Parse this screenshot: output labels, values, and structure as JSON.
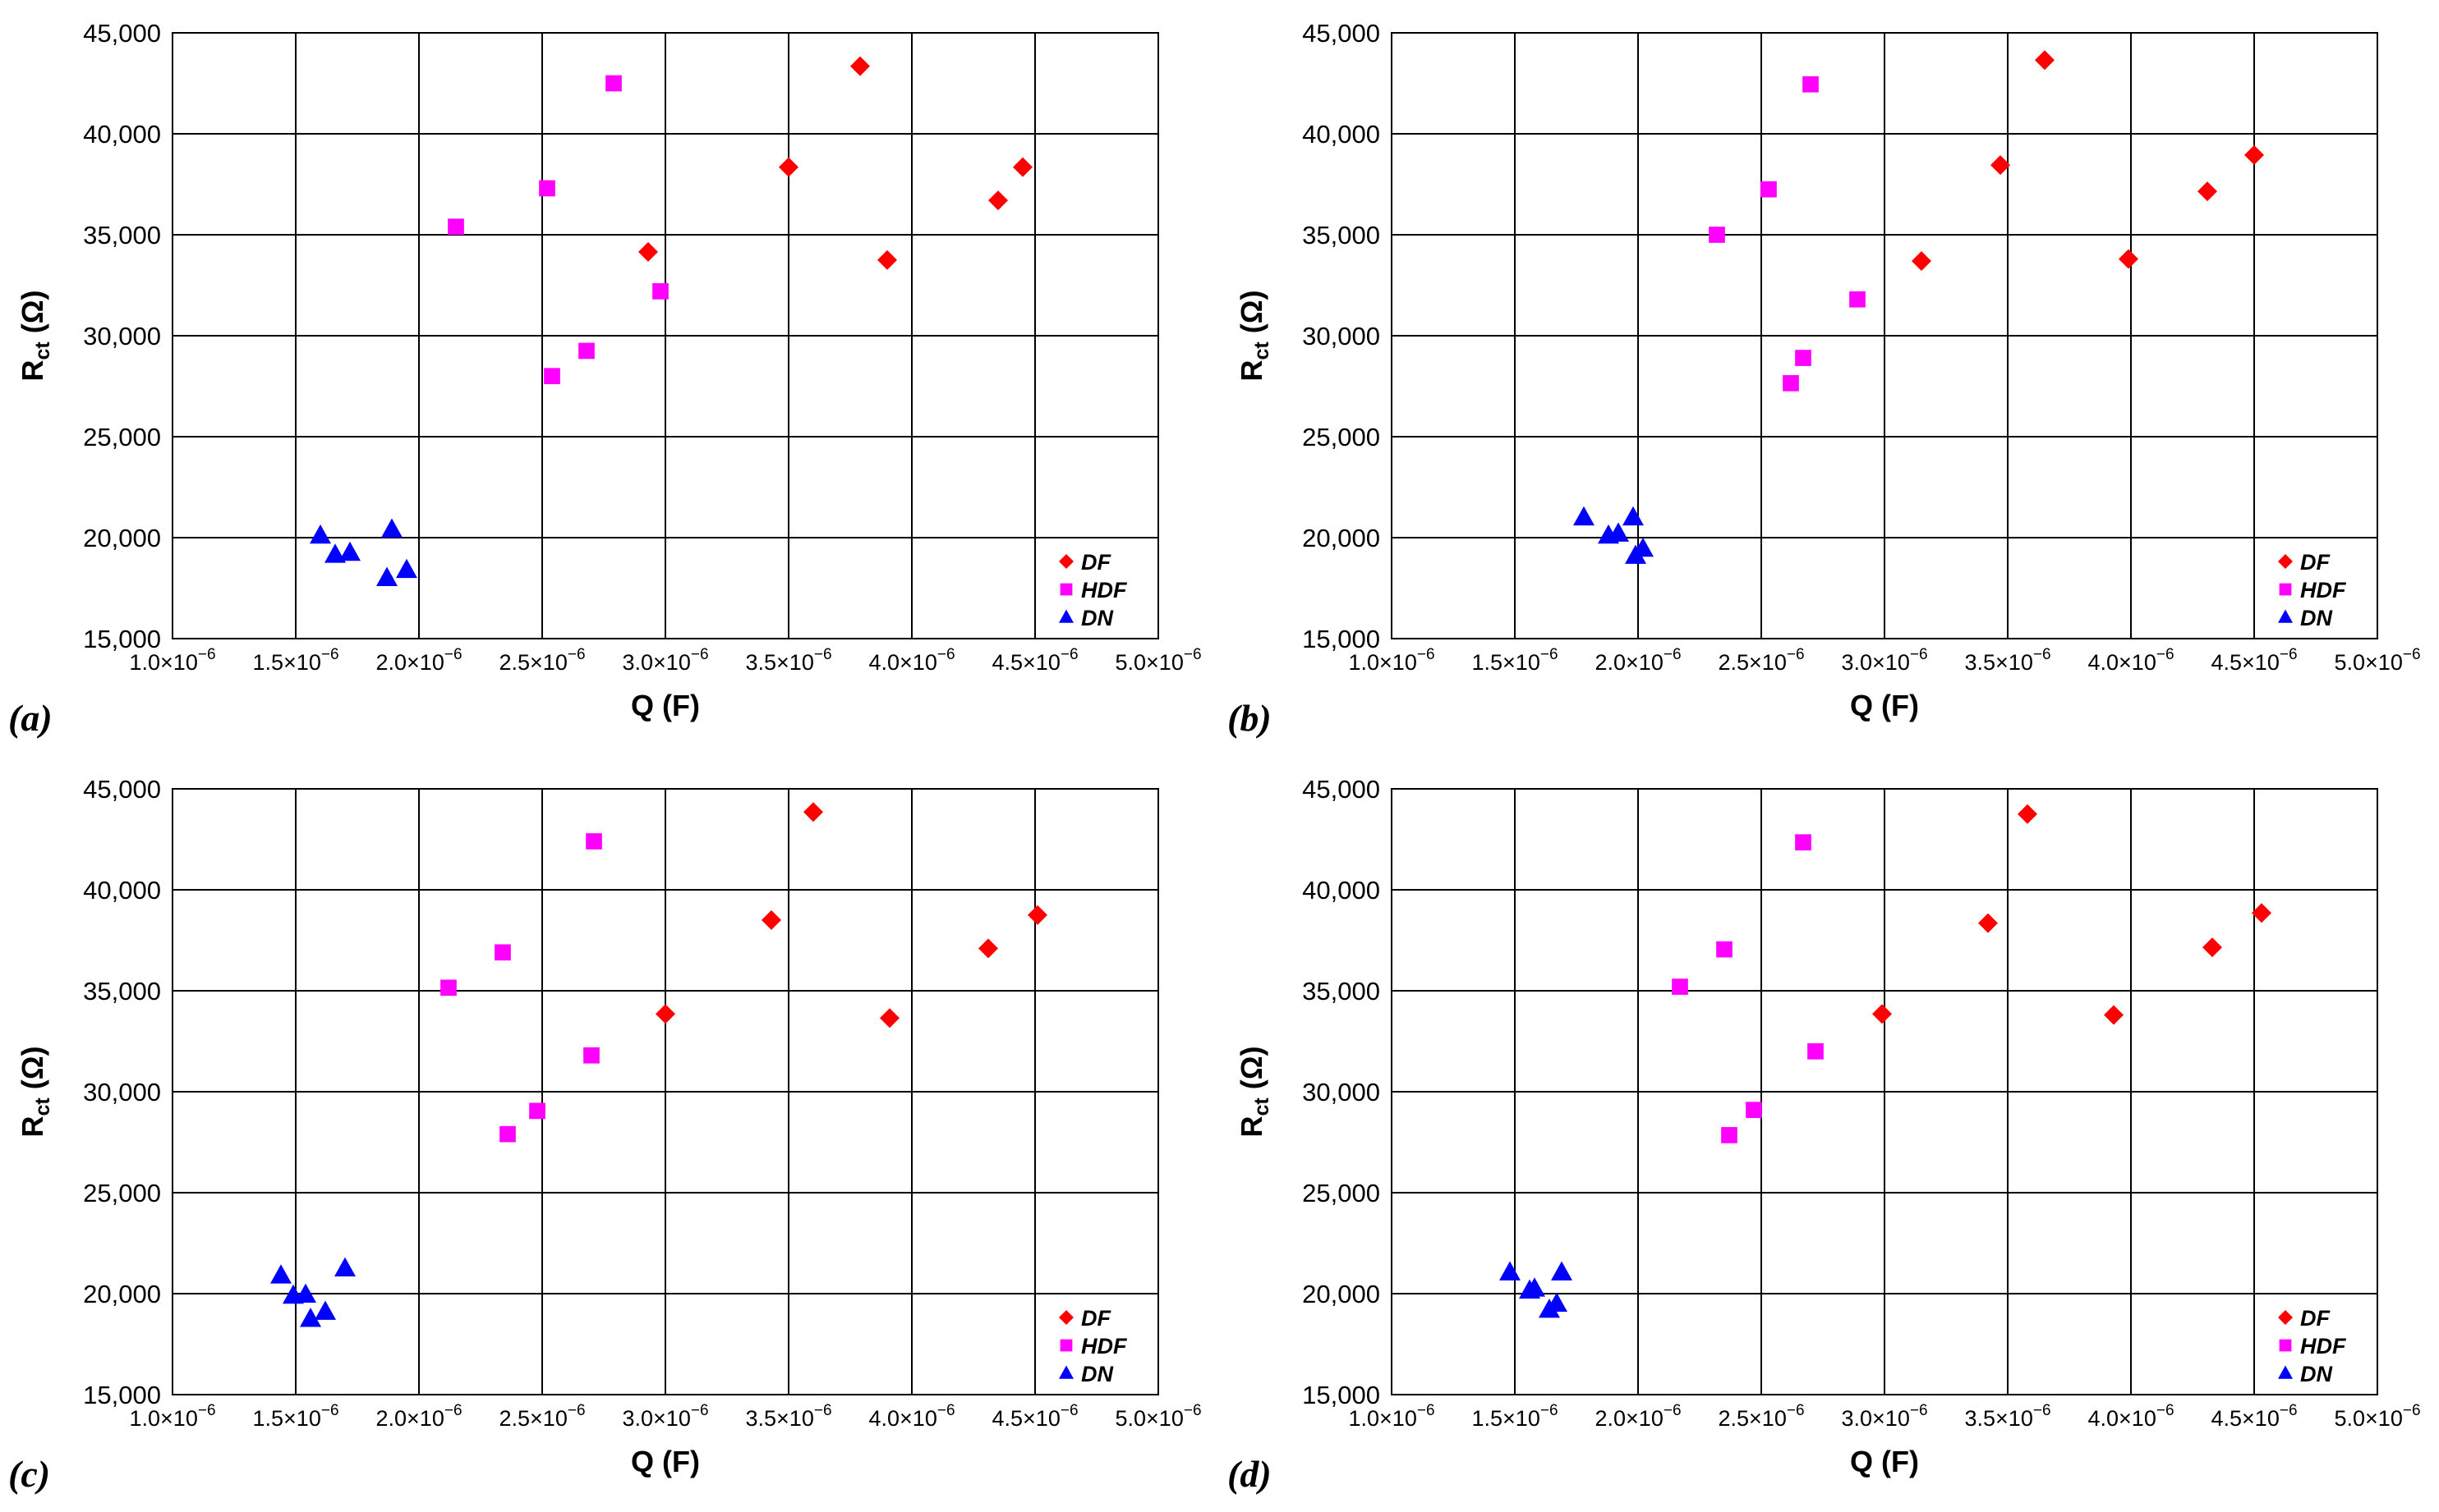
{
  "chart_data": [
    {
      "type": "scatter",
      "panel_label": "(a)",
      "xlabel": "Q (F)",
      "ylabel": "R",
      "ylabel_sub": "ct",
      "ylabel_unit": " (Ω)",
      "xlim": [
        1e-06,
        5e-06
      ],
      "ylim": [
        15000,
        45000
      ],
      "grid": true,
      "legend_position": "bottom-right",
      "x_ticks": [
        {
          "mantissa": "1.0",
          "exponent": "−6"
        },
        {
          "mantissa": "1.5",
          "exponent": "−6"
        },
        {
          "mantissa": "2.0",
          "exponent": "−6"
        },
        {
          "mantissa": "2.5",
          "exponent": "−6"
        },
        {
          "mantissa": "3.0",
          "exponent": "−6"
        },
        {
          "mantissa": "3.5",
          "exponent": "−6"
        },
        {
          "mantissa": "4.0",
          "exponent": "−6"
        },
        {
          "mantissa": "4.5",
          "exponent": "−6"
        },
        {
          "mantissa": "5.0",
          "exponent": "−6"
        }
      ],
      "y_ticks": [
        "15,000",
        "20,000",
        "25,000",
        "30,000",
        "35,000",
        "40,000",
        "45,000"
      ],
      "series": [
        {
          "name": "DF",
          "marker": "diamond",
          "color": "#ff0000",
          "x": [
            2.93e-06,
            3.5e-06,
            3.79e-06,
            3.9e-06,
            4.35e-06,
            4.45e-06
          ],
          "y": [
            34150,
            38350,
            43350,
            33750,
            36700,
            38350
          ]
        },
        {
          "name": "HDF",
          "marker": "square",
          "color": "#ff00ff",
          "x": [
            2.15e-06,
            2.52e-06,
            2.54e-06,
            2.68e-06,
            2.79e-06,
            2.98e-06
          ],
          "y": [
            35400,
            37300,
            28000,
            29250,
            42500,
            32200
          ]
        },
        {
          "name": "DN",
          "marker": "triangle",
          "color": "#0000ff",
          "x": [
            1.6e-06,
            1.66e-06,
            1.72e-06,
            1.87e-06,
            1.89e-06,
            1.95e-06
          ],
          "y": [
            20100,
            19150,
            19250,
            18000,
            20400,
            18400
          ]
        }
      ]
    },
    {
      "type": "scatter",
      "panel_label": "(b)",
      "xlabel": "Q (F)",
      "ylabel": "R",
      "ylabel_sub": "ct",
      "ylabel_unit": " (Ω)",
      "xlim": [
        1e-06,
        5e-06
      ],
      "ylim": [
        15000,
        45000
      ],
      "grid": true,
      "legend_position": "bottom-right",
      "x_ticks": [
        {
          "mantissa": "1.0",
          "exponent": "−6"
        },
        {
          "mantissa": "1.5",
          "exponent": "−6"
        },
        {
          "mantissa": "2.0",
          "exponent": "−6"
        },
        {
          "mantissa": "2.5",
          "exponent": "−6"
        },
        {
          "mantissa": "3.0",
          "exponent": "−6"
        },
        {
          "mantissa": "3.5",
          "exponent": "−6"
        },
        {
          "mantissa": "4.0",
          "exponent": "−6"
        },
        {
          "mantissa": "4.5",
          "exponent": "−6"
        },
        {
          "mantissa": "5.0",
          "exponent": "−6"
        }
      ],
      "y_ticks": [
        "15,000",
        "20,000",
        "25,000",
        "30,000",
        "35,000",
        "40,000",
        "45,000"
      ],
      "series": [
        {
          "name": "DF",
          "marker": "diamond",
          "color": "#ff0000",
          "x": [
            3.15e-06,
            3.47e-06,
            3.65e-06,
            3.99e-06,
            4.31e-06,
            4.5e-06
          ],
          "y": [
            33700,
            38450,
            43650,
            33800,
            37150,
            38950
          ]
        },
        {
          "name": "HDF",
          "marker": "square",
          "color": "#ff00ff",
          "x": [
            2.32e-06,
            2.53e-06,
            2.62e-06,
            2.67e-06,
            2.7e-06,
            2.89e-06
          ],
          "y": [
            35000,
            37250,
            27650,
            28900,
            42450,
            31800
          ]
        },
        {
          "name": "DN",
          "marker": "triangle",
          "color": "#0000ff",
          "x": [
            1.78e-06,
            1.88e-06,
            1.92e-06,
            1.98e-06,
            1.99e-06,
            2.02e-06
          ],
          "y": [
            21000,
            20100,
            20200,
            21000,
            19100,
            19450
          ]
        }
      ]
    },
    {
      "type": "scatter",
      "panel_label": "(c)",
      "xlabel": "Q (F)",
      "ylabel": "R",
      "ylabel_sub": "ct",
      "ylabel_unit": " (Ω)",
      "xlim": [
        1e-06,
        5e-06
      ],
      "ylim": [
        15000,
        45000
      ],
      "grid": true,
      "legend_position": "bottom-right",
      "x_ticks": [
        {
          "mantissa": "1.0",
          "exponent": "−6"
        },
        {
          "mantissa": "1.5",
          "exponent": "−6"
        },
        {
          "mantissa": "2.0",
          "exponent": "−6"
        },
        {
          "mantissa": "2.5",
          "exponent": "−6"
        },
        {
          "mantissa": "3.0",
          "exponent": "−6"
        },
        {
          "mantissa": "3.5",
          "exponent": "−6"
        },
        {
          "mantissa": "4.0",
          "exponent": "−6"
        },
        {
          "mantissa": "4.5",
          "exponent": "−6"
        },
        {
          "mantissa": "5.0",
          "exponent": "−6"
        }
      ],
      "y_ticks": [
        "15,000",
        "20,000",
        "25,000",
        "30,000",
        "35,000",
        "40,000",
        "45,000"
      ],
      "series": [
        {
          "name": "DF",
          "marker": "diamond",
          "color": "#ff0000",
          "x": [
            3e-06,
            3.43e-06,
            3.6e-06,
            3.91e-06,
            4.31e-06,
            4.51e-06
          ],
          "y": [
            33850,
            38500,
            43850,
            33650,
            37100,
            38750
          ]
        },
        {
          "name": "HDF",
          "marker": "square",
          "color": "#ff00ff",
          "x": [
            2.12e-06,
            2.34e-06,
            2.36e-06,
            2.48e-06,
            2.7e-06,
            2.71e-06
          ],
          "y": [
            35150,
            36900,
            27900,
            29050,
            31800,
            42400
          ]
        },
        {
          "name": "DN",
          "marker": "triangle",
          "color": "#0000ff",
          "x": [
            1.44e-06,
            1.49e-06,
            1.54e-06,
            1.56e-06,
            1.62e-06,
            1.7e-06
          ],
          "y": [
            20900,
            19900,
            19950,
            18750,
            19100,
            21250
          ]
        }
      ]
    },
    {
      "type": "scatter",
      "panel_label": "(d)",
      "xlabel": "Q (F)",
      "ylabel": "R",
      "ylabel_sub": "ct",
      "ylabel_unit": " (Ω)",
      "xlim": [
        1e-06,
        5e-06
      ],
      "ylim": [
        15000,
        45000
      ],
      "grid": true,
      "legend_position": "bottom-right",
      "x_ticks": [
        {
          "mantissa": "1.0",
          "exponent": "−6"
        },
        {
          "mantissa": "1.5",
          "exponent": "−6"
        },
        {
          "mantissa": "2.0",
          "exponent": "−6"
        },
        {
          "mantissa": "2.5",
          "exponent": "−6"
        },
        {
          "mantissa": "3.0",
          "exponent": "−6"
        },
        {
          "mantissa": "3.5",
          "exponent": "−6"
        },
        {
          "mantissa": "4.0",
          "exponent": "−6"
        },
        {
          "mantissa": "4.5",
          "exponent": "−6"
        },
        {
          "mantissa": "5.0",
          "exponent": "−6"
        }
      ],
      "y_ticks": [
        "15,000",
        "20,000",
        "25,000",
        "30,000",
        "35,000",
        "40,000",
        "45,000"
      ],
      "series": [
        {
          "name": "DF",
          "marker": "diamond",
          "color": "#ff0000",
          "x": [
            2.99e-06,
            3.42e-06,
            3.58e-06,
            3.93e-06,
            4.33e-06,
            4.53e-06
          ],
          "y": [
            33850,
            38350,
            43750,
            33800,
            37150,
            38850
          ]
        },
        {
          "name": "HDF",
          "marker": "square",
          "color": "#ff00ff",
          "x": [
            2.17e-06,
            2.35e-06,
            2.37e-06,
            2.47e-06,
            2.67e-06,
            2.72e-06
          ],
          "y": [
            35200,
            37050,
            27850,
            29100,
            42350,
            32000
          ]
        },
        {
          "name": "DN",
          "marker": "triangle",
          "color": "#0000ff",
          "x": [
            1.48e-06,
            1.56e-06,
            1.58e-06,
            1.64e-06,
            1.67e-06,
            1.69e-06
          ],
          "y": [
            21050,
            20150,
            20250,
            19200,
            19500,
            21050
          ]
        }
      ]
    }
  ]
}
